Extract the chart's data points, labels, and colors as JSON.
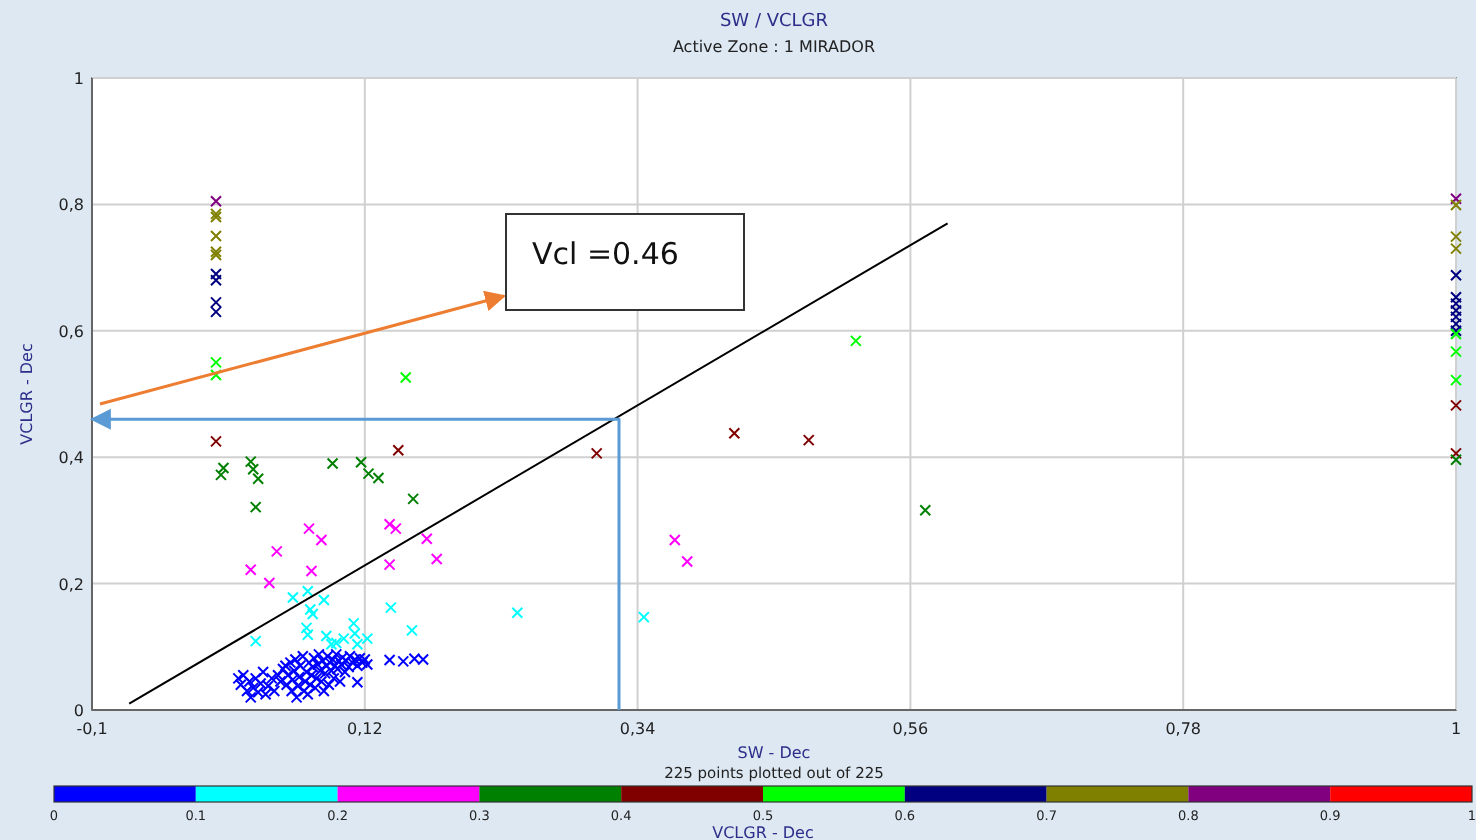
{
  "chart_data": {
    "type": "scatter",
    "title": "SW / VCLGR",
    "subtitle": "Active Zone : 1  MIRADOR",
    "xlabel": "SW - Dec",
    "ylabel": "VCLGR - Dec",
    "clabel": "VCLGR - Dec",
    "annotations": [
      "Vcl =0.46",
      "225 points plotted out of 225"
    ],
    "xlim": [
      -0.1,
      1
    ],
    "xticks": [
      {
        "value": -0.1,
        "label": "-0,1"
      },
      {
        "value": 0.12,
        "label": "0,12"
      },
      {
        "value": 0.34,
        "label": "0,34"
      },
      {
        "value": 0.56,
        "label": "0,56"
      },
      {
        "value": 0.78,
        "label": "0,78"
      },
      1
    ],
    "ylim": [
      0,
      1
    ],
    "yticks": [
      0,
      {
        "value": 0.2,
        "label": "0,2"
      },
      {
        "value": 0.4,
        "label": "0,4"
      },
      {
        "value": 0.6,
        "label": "0,6"
      },
      {
        "value": 0.8,
        "label": "0,8"
      },
      1
    ],
    "clim": [
      0,
      1
    ],
    "cticks": [
      0,
      0.1,
      0.2,
      0.3,
      0.4,
      0.5,
      0.6,
      0.7,
      0.8,
      0.9,
      1
    ],
    "grid": true,
    "series": [
      {
        "marker": "cross",
        "x": [
          0,
          0,
          0,
          0,
          0,
          0,
          0,
          0,
          0,
          0,
          0,
          0,
          0,
          0.006,
          0.004,
          0.028,
          0.03,
          0.034,
          0.032,
          0.094,
          0.117,
          0.123,
          0.131,
          0.159,
          0.153,
          0.147,
          0.075,
          0.085,
          0.049,
          0.028,
          0.077,
          0.043,
          0.14,
          0.145,
          0.17,
          0.178,
          0.14,
          0.074,
          0.062,
          0.087,
          0.076,
          0.078,
          0.073,
          0.074,
          0.089,
          0.032,
          0.111,
          0.112,
          0.103,
          0.122,
          0.141,
          0.158,
          0.243,
          0.093,
          0.097,
          0.114,
          0.345,
          0.14,
          0.151,
          0.16,
          0.167,
          0.114,
          0.307,
          0.418,
          0.478,
          0.37,
          0.38,
          0.516,
          0.572,
          1,
          1,
          1,
          1,
          1,
          1,
          1,
          1,
          1,
          1,
          1,
          1,
          1,
          1,
          1,
          1,
          1,
          0.018,
          0.02,
          0.022,
          0.025,
          0.027,
          0.028,
          0.03,
          0.032,
          0.034,
          0.036,
          0.038,
          0.04,
          0.042,
          0.045,
          0.047,
          0.05,
          0.052,
          0.054,
          0.056,
          0.057,
          0.058,
          0.06,
          0.061,
          0.062,
          0.063,
          0.064,
          0.065,
          0.066,
          0.067,
          0.068,
          0.07,
          0.071,
          0.072,
          0.073,
          0.074,
          0.075,
          0.076,
          0.077,
          0.078,
          0.079,
          0.08,
          0.081,
          0.082,
          0.083,
          0.084,
          0.085,
          0.086,
          0.087,
          0.088,
          0.089,
          0.09,
          0.091,
          0.092,
          0.093,
          0.094,
          0.095,
          0.096,
          0.097,
          0.098,
          0.099,
          0.1,
          0.101,
          0.102,
          0.104,
          0.105,
          0.107,
          0.108,
          0.11,
          0.112,
          0.114,
          0.116,
          0.118,
          0.12,
          0.122
        ],
        "values": [
          0.805,
          0.785,
          0.78,
          0.75,
          0.725,
          0.72,
          0.69,
          0.68,
          0.645,
          0.63,
          0.55,
          0.53,
          0.425,
          0.383,
          0.372,
          0.393,
          0.381,
          0.366,
          0.321,
          0.39,
          0.392,
          0.374,
          0.367,
          0.334,
          0.526,
          0.411,
          0.287,
          0.269,
          0.251,
          0.222,
          0.22,
          0.201,
          0.294,
          0.287,
          0.271,
          0.239,
          0.23,
          0.188,
          0.178,
          0.174,
          0.159,
          0.152,
          0.13,
          0.119,
          0.117,
          0.109,
          0.137,
          0.121,
          0.113,
          0.113,
          0.162,
          0.126,
          0.154,
          0.104,
          0.106,
          0.104,
          0.147,
          0.079,
          0.077,
          0.081,
          0.08,
          0.044,
          0.406,
          0.438,
          0.427,
          0.269,
          0.235,
          0.584,
          0.316,
          0.809,
          0.799,
          0.749,
          0.73,
          0.688,
          0.653,
          0.643,
          0.632,
          0.622,
          0.611,
          0.6,
          0.595,
          0.567,
          0.522,
          0.482,
          0.406,
          0.396,
          0.05,
          0.04,
          0.055,
          0.03,
          0.045,
          0.02,
          0.035,
          0.05,
          0.028,
          0.042,
          0.06,
          0.025,
          0.038,
          0.05,
          0.03,
          0.055,
          0.045,
          0.065,
          0.07,
          0.04,
          0.055,
          0.075,
          0.03,
          0.048,
          0.062,
          0.08,
          0.02,
          0.038,
          0.052,
          0.07,
          0.085,
          0.03,
          0.045,
          0.06,
          0.025,
          0.075,
          0.04,
          0.055,
          0.068,
          0.082,
          0.035,
          0.05,
          0.072,
          0.088,
          0.062,
          0.045,
          0.078,
          0.03,
          0.058,
          0.07,
          0.085,
          0.04,
          0.075,
          0.062,
          0.08,
          0.05,
          0.07,
          0.088,
          0.065,
          0.078,
          0.045,
          0.072,
          0.083,
          0.06,
          0.078,
          0.068,
          0.085,
          0.075,
          0.08,
          0.07,
          0.082,
          0.075,
          0.08,
          0.072
        ],
        "colors": [
          "#800080",
          "#808000",
          "#808000",
          "#808000",
          "#808000",
          "#808000",
          "#000080",
          "#000080",
          "#000080",
          "#000080",
          "#00ff00",
          "#00ff00",
          "#800000",
          "#008000",
          "#008000",
          "#008000",
          "#008000",
          "#008000",
          "#008000",
          "#008000",
          "#008000",
          "#008000",
          "#008000",
          "#008000",
          "#00ff00",
          "#800000",
          "#ff00ff",
          "#ff00ff",
          "#ff00ff",
          "#ff00ff",
          "#ff00ff",
          "#ff00ff",
          "#ff00ff",
          "#ff00ff",
          "#ff00ff",
          "#ff00ff",
          "#ff00ff",
          "#00ffff",
          "#00ffff",
          "#00ffff",
          "#00ffff",
          "#00ffff",
          "#00ffff",
          "#00ffff",
          "#00ffff",
          "#00ffff",
          "#00ffff",
          "#00ffff",
          "#00ffff",
          "#00ffff",
          "#00ffff",
          "#00ffff",
          "#00ffff",
          "#00ffff",
          "#00ffff",
          "#00ffff",
          "#00ffff",
          "#0000ff",
          "#0000ff",
          "#0000ff",
          "#0000ff",
          "#0000ff",
          "#800000",
          "#800000",
          "#800000",
          "#ff00ff",
          "#ff00ff",
          "#00ff00",
          "#008000",
          "#800080",
          "#808000",
          "#808000",
          "#808000",
          "#000080",
          "#000080",
          "#000080",
          "#000080",
          "#000080",
          "#000080",
          "#000080",
          "#00ff00",
          "#00ff00",
          "#00ff00",
          "#800000",
          "#800000",
          "#008000",
          "#0000ff",
          "#0000ff",
          "#0000ff",
          "#0000ff",
          "#0000ff",
          "#0000ff",
          "#0000ff",
          "#0000ff",
          "#0000ff",
          "#0000ff",
          "#0000ff",
          "#0000ff",
          "#0000ff",
          "#0000ff",
          "#0000ff",
          "#0000ff",
          "#0000ff",
          "#0000ff",
          "#0000ff",
          "#0000ff",
          "#0000ff",
          "#0000ff",
          "#0000ff",
          "#0000ff",
          "#0000ff",
          "#0000ff",
          "#0000ff",
          "#0000ff",
          "#0000ff",
          "#0000ff",
          "#0000ff",
          "#0000ff",
          "#0000ff",
          "#0000ff",
          "#0000ff",
          "#0000ff",
          "#0000ff",
          "#0000ff",
          "#0000ff",
          "#0000ff",
          "#0000ff",
          "#0000ff",
          "#0000ff",
          "#0000ff",
          "#0000ff",
          "#0000ff",
          "#0000ff",
          "#0000ff",
          "#0000ff",
          "#0000ff",
          "#0000ff",
          "#0000ff",
          "#0000ff",
          "#0000ff",
          "#0000ff",
          "#0000ff",
          "#0000ff",
          "#0000ff",
          "#0000ff",
          "#0000ff",
          "#0000ff",
          "#0000ff",
          "#0000ff",
          "#0000ff",
          "#0000ff",
          "#0000ff",
          "#0000ff",
          "#0000ff",
          "#0000ff",
          "#0000ff",
          "#0000ff",
          "#0000ff",
          "#0000ff",
          "#0000ff"
        ]
      },
      {
        "type": "line",
        "color": "#000000",
        "x": [
          -0.07,
          0.59
        ],
        "values": [
          0.01,
          0.77
        ]
      },
      {
        "type": "line",
        "color": "#5b9bd5",
        "x": [
          0.325,
          0.325,
          -0.1
        ],
        "values": [
          0,
          0.46,
          0.46
        ]
      }
    ]
  }
}
